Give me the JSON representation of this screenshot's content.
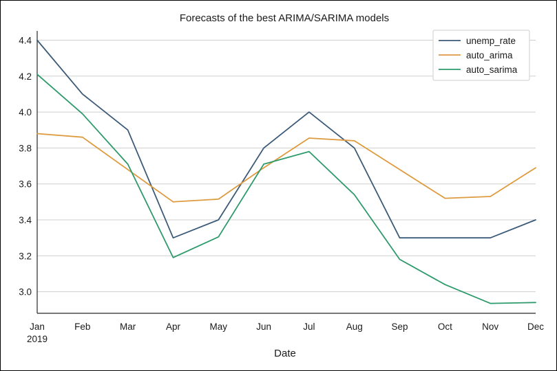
{
  "chart_data": {
    "type": "line",
    "title": "Forecasts of the best ARIMA/SARIMA models",
    "xlabel": "Date",
    "ylabel": "",
    "categories": [
      "Jan",
      "Feb",
      "Mar",
      "Apr",
      "May",
      "Jun",
      "Jul",
      "Aug",
      "Sep",
      "Oct",
      "Nov",
      "Dec"
    ],
    "year_label": "2019",
    "ylim": [
      2.88,
      4.44
    ],
    "yticks": [
      "3.0",
      "3.2",
      "3.4",
      "3.6",
      "3.8",
      "4.0",
      "4.2",
      "4.4"
    ],
    "grid": "horizontal",
    "legend_position": "top-right",
    "series": [
      {
        "name": "unemp_rate",
        "color": "#3b5a78",
        "values": [
          4.4,
          4.1,
          3.9,
          3.3,
          3.4,
          3.8,
          4.0,
          3.8,
          3.3,
          3.3,
          3.3,
          3.4
        ]
      },
      {
        "name": "auto_arima",
        "color": "#de9a3e",
        "values": [
          3.88,
          3.86,
          3.68,
          3.5,
          3.515,
          3.69,
          3.855,
          3.84,
          3.68,
          3.52,
          3.53,
          3.69
        ]
      },
      {
        "name": "auto_sarima",
        "color": "#2d9a6b",
        "values": [
          4.21,
          3.99,
          3.71,
          3.19,
          3.305,
          3.71,
          3.78,
          3.54,
          3.18,
          3.04,
          2.935,
          2.94
        ]
      }
    ]
  }
}
